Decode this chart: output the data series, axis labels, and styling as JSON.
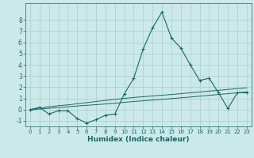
{
  "xlabel": "Humidex (Indice chaleur)",
  "ylabel": "",
  "background_color": "#cce9e9",
  "grid_color": "#aacccc",
  "line_color": "#1a6666",
  "x_data": [
    0,
    1,
    2,
    3,
    4,
    5,
    6,
    7,
    8,
    9,
    10,
    11,
    12,
    13,
    14,
    15,
    16,
    17,
    18,
    19,
    20,
    21,
    22,
    23
  ],
  "y_main": [
    0,
    0.2,
    -0.4,
    -0.1,
    -0.1,
    -0.8,
    -1.2,
    -0.9,
    -0.5,
    -0.4,
    1.4,
    2.8,
    5.4,
    7.3,
    8.7,
    6.4,
    5.5,
    4.0,
    2.6,
    2.8,
    1.5,
    0.1,
    1.5,
    1.5
  ],
  "y_line1": [
    0.0,
    0.15,
    0.25,
    0.35,
    0.42,
    0.52,
    0.62,
    0.72,
    0.82,
    0.92,
    1.0,
    1.08,
    1.15,
    1.22,
    1.28,
    1.35,
    1.42,
    1.5,
    1.57,
    1.65,
    1.72,
    1.8,
    1.87,
    1.95
  ],
  "y_line2": [
    -0.05,
    0.05,
    0.12,
    0.18,
    0.25,
    0.32,
    0.38,
    0.44,
    0.5,
    0.57,
    0.65,
    0.72,
    0.78,
    0.85,
    0.92,
    0.98,
    1.05,
    1.12,
    1.2,
    1.27,
    1.35,
    1.42,
    1.5,
    1.58
  ],
  "xlim": [
    -0.5,
    23.5
  ],
  "ylim": [
    -1.5,
    9.5
  ],
  "yticks": [
    -1,
    0,
    1,
    2,
    3,
    4,
    5,
    6,
    7,
    8
  ],
  "xticks": [
    0,
    1,
    2,
    3,
    4,
    5,
    6,
    7,
    8,
    9,
    10,
    11,
    12,
    13,
    14,
    15,
    16,
    17,
    18,
    19,
    20,
    21,
    22,
    23
  ]
}
